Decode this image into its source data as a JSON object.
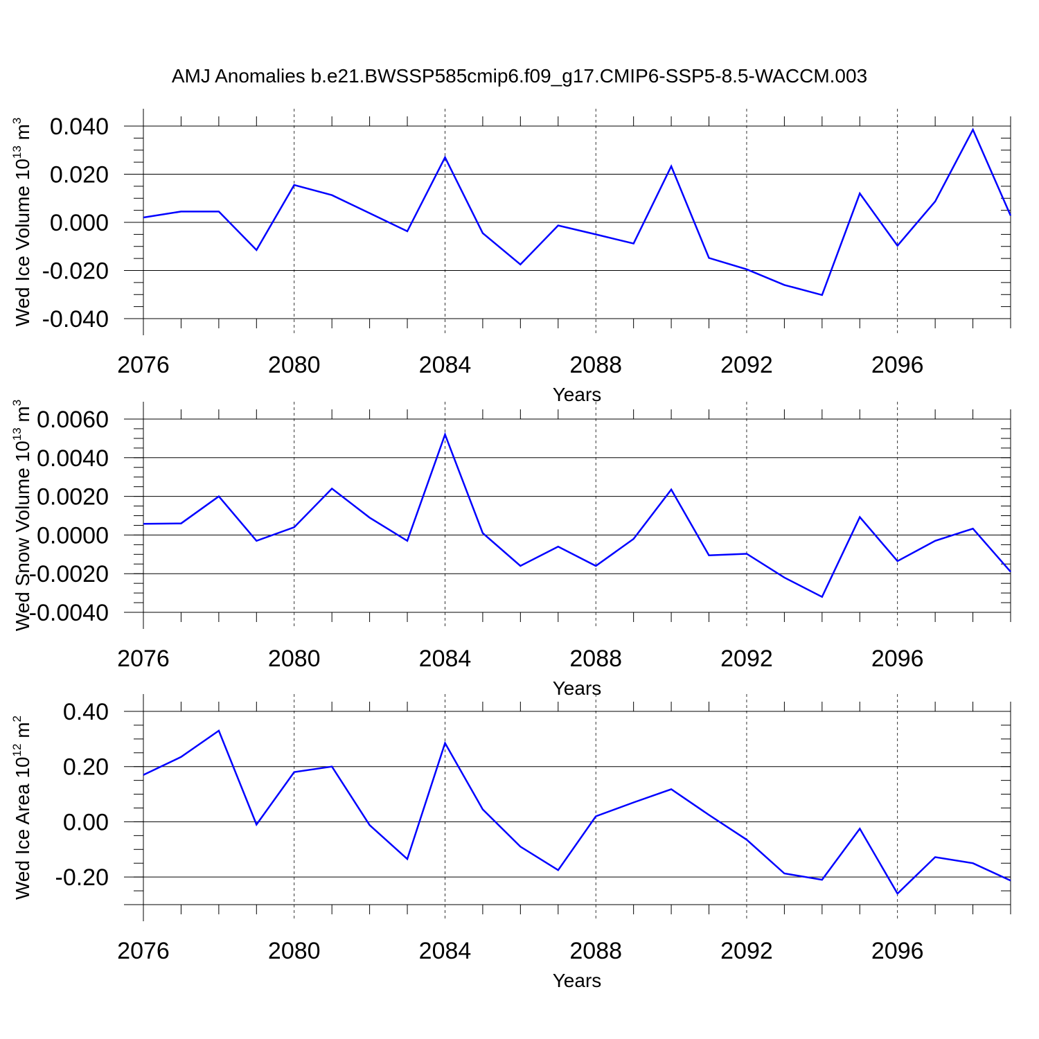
{
  "chart_data": {
    "title": "AMJ Anomalies b.e21.BWSSP585cmip6.f09_g17.CMIP6-SSP5-8.5-WACCM.003",
    "line_color": "#0000ff",
    "panels": [
      {
        "type": "line",
        "ylabel": {
          "main": "Wed Ice Volume 10",
          "exp": "13",
          "unit": " m",
          "unit_exp": "3"
        },
        "xlabel": "Years",
        "xlim": [
          2076,
          2099
        ],
        "ylim": [
          -0.04,
          0.04
        ],
        "ytick_values": [
          -0.04,
          -0.02,
          0.0,
          0.02,
          0.04
        ],
        "yticks": [
          "-0.040",
          "-0.020",
          "0.000",
          "0.020",
          "0.040"
        ],
        "yminor_step": 0.005,
        "xtick_values": [
          2076,
          2080,
          2084,
          2088,
          2092,
          2096
        ],
        "xticks": [
          "2076",
          "2080",
          "2084",
          "2088",
          "2092",
          "2096"
        ],
        "x": [
          2076,
          2077,
          2078,
          2079,
          2080,
          2081,
          2082,
          2083,
          2084,
          2085,
          2086,
          2087,
          2088,
          2089,
          2090,
          2091,
          2092,
          2093,
          2094,
          2095,
          2096,
          2097,
          2098,
          2099
        ],
        "values": [
          0.002,
          0.0045,
          0.0045,
          -0.0115,
          0.0155,
          0.0113,
          0.0038,
          -0.0037,
          0.027,
          -0.0045,
          -0.0175,
          -0.0013,
          -0.005,
          -0.0088,
          0.0233,
          -0.0148,
          -0.0195,
          -0.026,
          -0.0302,
          0.012,
          -0.0097,
          0.0087,
          0.0385,
          0.0028
        ]
      },
      {
        "type": "line",
        "ylabel": {
          "main": "Wed Snow Volume 10",
          "exp": "13",
          "unit": " m",
          "unit_exp": "3"
        },
        "xlabel": "Years",
        "xlim": [
          2076,
          2099
        ],
        "ylim": [
          -0.004,
          0.006
        ],
        "ytick_values": [
          -0.004,
          -0.002,
          0.0,
          0.002,
          0.004,
          0.006
        ],
        "yticks": [
          "-0.0040",
          "-0.0020",
          "0.0000",
          "0.0020",
          "0.0040",
          "0.0060"
        ],
        "yminor_step": 0.0005,
        "xtick_values": [
          2076,
          2080,
          2084,
          2088,
          2092,
          2096
        ],
        "xticks": [
          "2076",
          "2080",
          "2084",
          "2088",
          "2092",
          "2096"
        ],
        "x": [
          2076,
          2077,
          2078,
          2079,
          2080,
          2081,
          2082,
          2083,
          2084,
          2085,
          2086,
          2087,
          2088,
          2089,
          2090,
          2091,
          2092,
          2093,
          2094,
          2095,
          2096,
          2097,
          2098,
          2099
        ],
        "values": [
          0.00058,
          0.0006,
          0.002,
          -0.0003,
          0.0004,
          0.0024,
          0.0009,
          -0.0003,
          0.0052,
          0.0001,
          -0.0016,
          -0.0006,
          -0.0016,
          -0.0002,
          0.00235,
          -0.00105,
          -0.00097,
          -0.0022,
          -0.0032,
          0.00093,
          -0.00135,
          -0.0003,
          0.00033,
          -0.0019
        ]
      },
      {
        "type": "line",
        "ylabel": {
          "main": "Wed Ice Area 10",
          "exp": "12",
          "unit": " m",
          "unit_exp": "2"
        },
        "xlabel": "Years",
        "xlim": [
          2076,
          2099
        ],
        "ylim": [
          -0.3,
          0.4
        ],
        "ytick_values": [
          -0.2,
          0.0,
          0.2,
          0.4
        ],
        "yticks": [
          "-0.20",
          "0.00",
          "0.20",
          "0.40"
        ],
        "yminor_step": 0.05,
        "xtick_values": [
          2076,
          2080,
          2084,
          2088,
          2092,
          2096
        ],
        "xticks": [
          "2076",
          "2080",
          "2084",
          "2088",
          "2092",
          "2096"
        ],
        "x": [
          2076,
          2077,
          2078,
          2079,
          2080,
          2081,
          2082,
          2083,
          2084,
          2085,
          2086,
          2087,
          2088,
          2089,
          2090,
          2091,
          2092,
          2093,
          2094,
          2095,
          2096,
          2097,
          2098,
          2099
        ],
        "values": [
          0.17,
          0.235,
          0.33,
          -0.01,
          0.18,
          0.2,
          -0.012,
          -0.135,
          0.285,
          0.045,
          -0.09,
          -0.175,
          0.02,
          0.07,
          0.118,
          0.025,
          -0.065,
          -0.187,
          -0.21,
          -0.025,
          -0.26,
          -0.128,
          -0.15,
          -0.213
        ]
      }
    ]
  }
}
